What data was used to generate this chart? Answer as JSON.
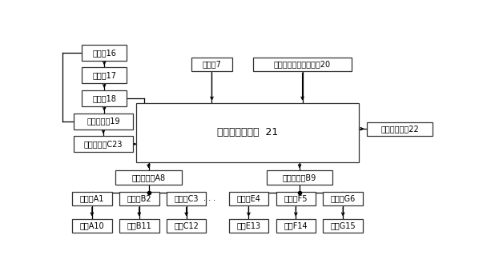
{
  "bg_color": "#ffffff",
  "box_edge": "#333333",
  "box_face": "#ffffff",
  "text_color": "#000000",
  "figw": 6.08,
  "figh": 3.44,
  "dpi": 100,
  "fontsize": 7.0,
  "ctrl_fontsize": 9.0,
  "boxes": {
    "药液箱16": [
      0.055,
      0.87,
      0.12,
      0.075
    ],
    "过滤器17": [
      0.055,
      0.762,
      0.12,
      0.075
    ],
    "隔膜泵18": [
      0.055,
      0.654,
      0.12,
      0.075
    ],
    "比例溢流阀19": [
      0.035,
      0.546,
      0.155,
      0.075
    ],
    "流量传感器C23": [
      0.035,
      0.438,
      0.155,
      0.075
    ],
    "上位机7": [
      0.345,
      0.82,
      0.11,
      0.065
    ],
    "喷雾机行驶速度传感器20": [
      0.51,
      0.82,
      0.26,
      0.065
    ],
    "变量喷施控制器  21": [
      0.2,
      0.39,
      0.59,
      0.28
    ],
    "键盘及显示屏22": [
      0.81,
      0.515,
      0.175,
      0.065
    ],
    "流量传感器A8": [
      0.145,
      0.285,
      0.175,
      0.065
    ],
    "流量传感器B9": [
      0.545,
      0.285,
      0.175,
      0.065
    ],
    "电磁阀A1": [
      0.03,
      0.185,
      0.105,
      0.065
    ],
    "电磁阀B2": [
      0.155,
      0.185,
      0.105,
      0.065
    ],
    "电磁阀C3": [
      0.28,
      0.185,
      0.105,
      0.065
    ],
    "电磁阀E4": [
      0.445,
      0.185,
      0.105,
      0.065
    ],
    "电磁阀F5": [
      0.57,
      0.185,
      0.105,
      0.065
    ],
    "电磁阀G6": [
      0.695,
      0.185,
      0.105,
      0.065
    ],
    "喷头A10": [
      0.03,
      0.058,
      0.105,
      0.065
    ],
    "喷头B11": [
      0.155,
      0.058,
      0.105,
      0.065
    ],
    "喷头C12": [
      0.28,
      0.058,
      0.105,
      0.065
    ],
    "喷头E13": [
      0.445,
      0.058,
      0.105,
      0.065
    ],
    "喷头F14": [
      0.57,
      0.058,
      0.105,
      0.065
    ],
    "喷头G15": [
      0.695,
      0.058,
      0.105,
      0.065
    ]
  },
  "small_boxes": [
    "药液箱16",
    "过滤器17",
    "隔膜泵18",
    "上位机7",
    "喷雾机行驶速度传感器20",
    "键盘及显示屏22",
    "流量传感器A8",
    "流量传感器B9",
    "电磁阀A1",
    "电磁阀B2",
    "电磁阀C3",
    "电磁阀E4",
    "电磁阀F5",
    "电磁阀G6",
    "喷头A10",
    "喷头B11",
    "喷头C12",
    "喷头E13",
    "喷头F14",
    "喷头G15"
  ],
  "wide_boxes": [
    "比例溢流阀19",
    "流量传感器C23"
  ],
  "ctrl_box": "变量喷施控制器  21"
}
